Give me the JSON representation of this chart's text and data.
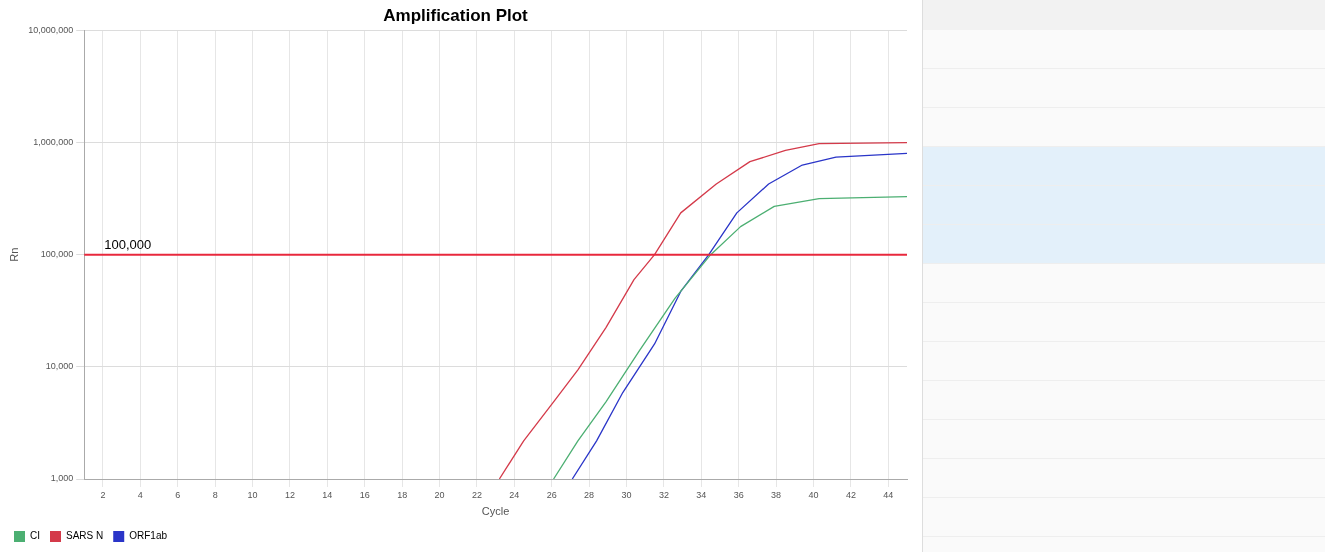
{
  "chart_data": {
    "type": "line",
    "title": "Amplification Plot",
    "xlabel": "Cycle",
    "ylabel": "Rn",
    "xlim": [
      1,
      45
    ],
    "xticks": [
      2,
      4,
      6,
      8,
      10,
      12,
      14,
      16,
      18,
      20,
      22,
      24,
      26,
      28,
      30,
      32,
      34,
      36,
      38,
      40,
      42,
      44
    ],
    "ylim": [
      1000,
      10000000
    ],
    "log": true,
    "yticks": [
      {
        "value": 1000,
        "label": "1,000"
      },
      {
        "value": 10000,
        "label": "10,000"
      },
      {
        "value": 100000,
        "label": "100,000"
      },
      {
        "value": 1000000,
        "label": "1,000,000"
      },
      {
        "value": 10000000,
        "label": "10,000,000"
      }
    ],
    "grid": true,
    "legend": "bottom left",
    "marker": "none",
    "line_style": "solid",
    "ref_lines": [
      {
        "axis": "y",
        "value": 100000,
        "label": "100,000",
        "color": "#e8283c"
      }
    ],
    "series": [
      {
        "name": "CI",
        "color": "#4caf72",
        "x": [
          26.1,
          27.4,
          28.9,
          30.7,
          32.6,
          34.5,
          36.1,
          37.9,
          40.3,
          45
        ],
        "values": [
          1000,
          2190,
          4880,
          14000,
          41000,
          100000,
          178000,
          270000,
          316000,
          330000
        ]
      },
      {
        "name": "SARS N",
        "color": "#d43a4a",
        "x": [
          23.2,
          24.5,
          26.1,
          27.4,
          28.9,
          30.4,
          31.5,
          32.9,
          34.8,
          36.6,
          38.5,
          40.3,
          45
        ],
        "values": [
          1000,
          2190,
          4880,
          9400,
          22400,
          60000,
          100000,
          236000,
          427000,
          676000,
          850000,
          980000,
          1000000
        ]
      },
      {
        "name": "ORF1ab",
        "color": "#2a35c8",
        "x": [
          27.1,
          28.4,
          29.8,
          31.5,
          32.9,
          34.4,
          35.9,
          37.6,
          39.4,
          41.2,
          45
        ],
        "values": [
          1000,
          2190,
          5900,
          16000,
          47000,
          100000,
          236000,
          427000,
          630000,
          740000,
          800000
        ]
      }
    ]
  }
}
